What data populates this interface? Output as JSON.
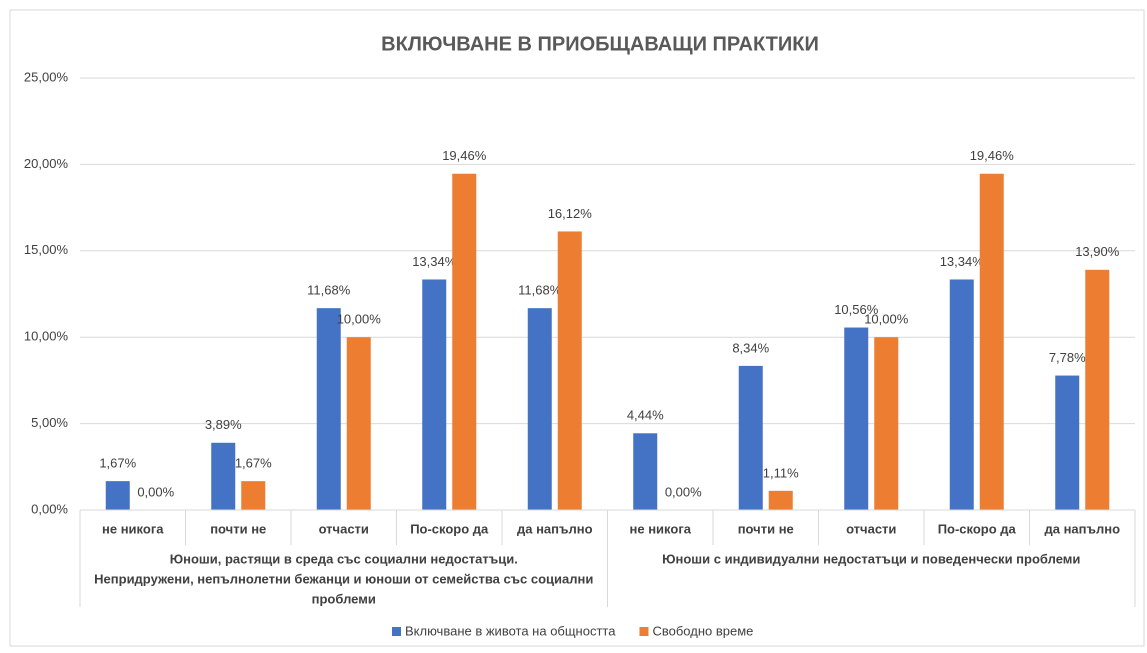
{
  "chart_data": {
    "type": "bar",
    "title": "ВКЛЮЧВАНЕ В ПРИОБЩАВАЩИ ПРАКТИКИ",
    "categories": [
      "не никога",
      "почти не",
      "отчасти",
      "По-скоро да",
      "да напълно",
      "не никога",
      "почти не",
      "отчасти",
      "По-скоро да",
      "да напълно"
    ],
    "groups": [
      {
        "lines": [
          "Юноши, растящи в среда със социални недостатъци.",
          "Непридружени,  непълнолетни бежанци  и юноши от семейства със социални",
          "проблеми"
        ]
      },
      {
        "lines": [
          "Юноши с индивидуални недостатъци  и поведенчески проблеми"
        ]
      }
    ],
    "series": [
      {
        "name": "Включване в живота на общността",
        "color": "#4472c4",
        "values": [
          1.67,
          3.89,
          11.68,
          13.34,
          11.68,
          4.44,
          8.34,
          10.56,
          13.34,
          7.78
        ],
        "value_labels": [
          "1,67%",
          "3,89%",
          "11,68%",
          "13,34%",
          "11,68%",
          "4,44%",
          "8,34%",
          "10,56%",
          "13,34%",
          "7,78%"
        ]
      },
      {
        "name": "Свободно време",
        "color": "#ed7d31",
        "values": [
          0,
          1.67,
          10,
          19.46,
          16.12,
          0,
          1.11,
          10,
          19.46,
          13.9
        ],
        "value_labels": [
          "0,00%",
          "1,67%",
          "10,00%",
          "19,46%",
          "16,12%",
          "0,00%",
          "1,11%",
          "10,00%",
          "19,46%",
          "13,90%"
        ]
      }
    ],
    "ylim": [
      0,
      25
    ],
    "yticks": [
      {
        "value": 0,
        "label": "0,00%"
      },
      {
        "value": 5,
        "label": "5,00%"
      },
      {
        "value": 10,
        "label": "10,00%"
      },
      {
        "value": 15,
        "label": "15,00%"
      },
      {
        "value": 20,
        "label": "20,00%"
      },
      {
        "value": 25,
        "label": "25,00%"
      }
    ],
    "grid": true,
    "legend": "bottom"
  }
}
